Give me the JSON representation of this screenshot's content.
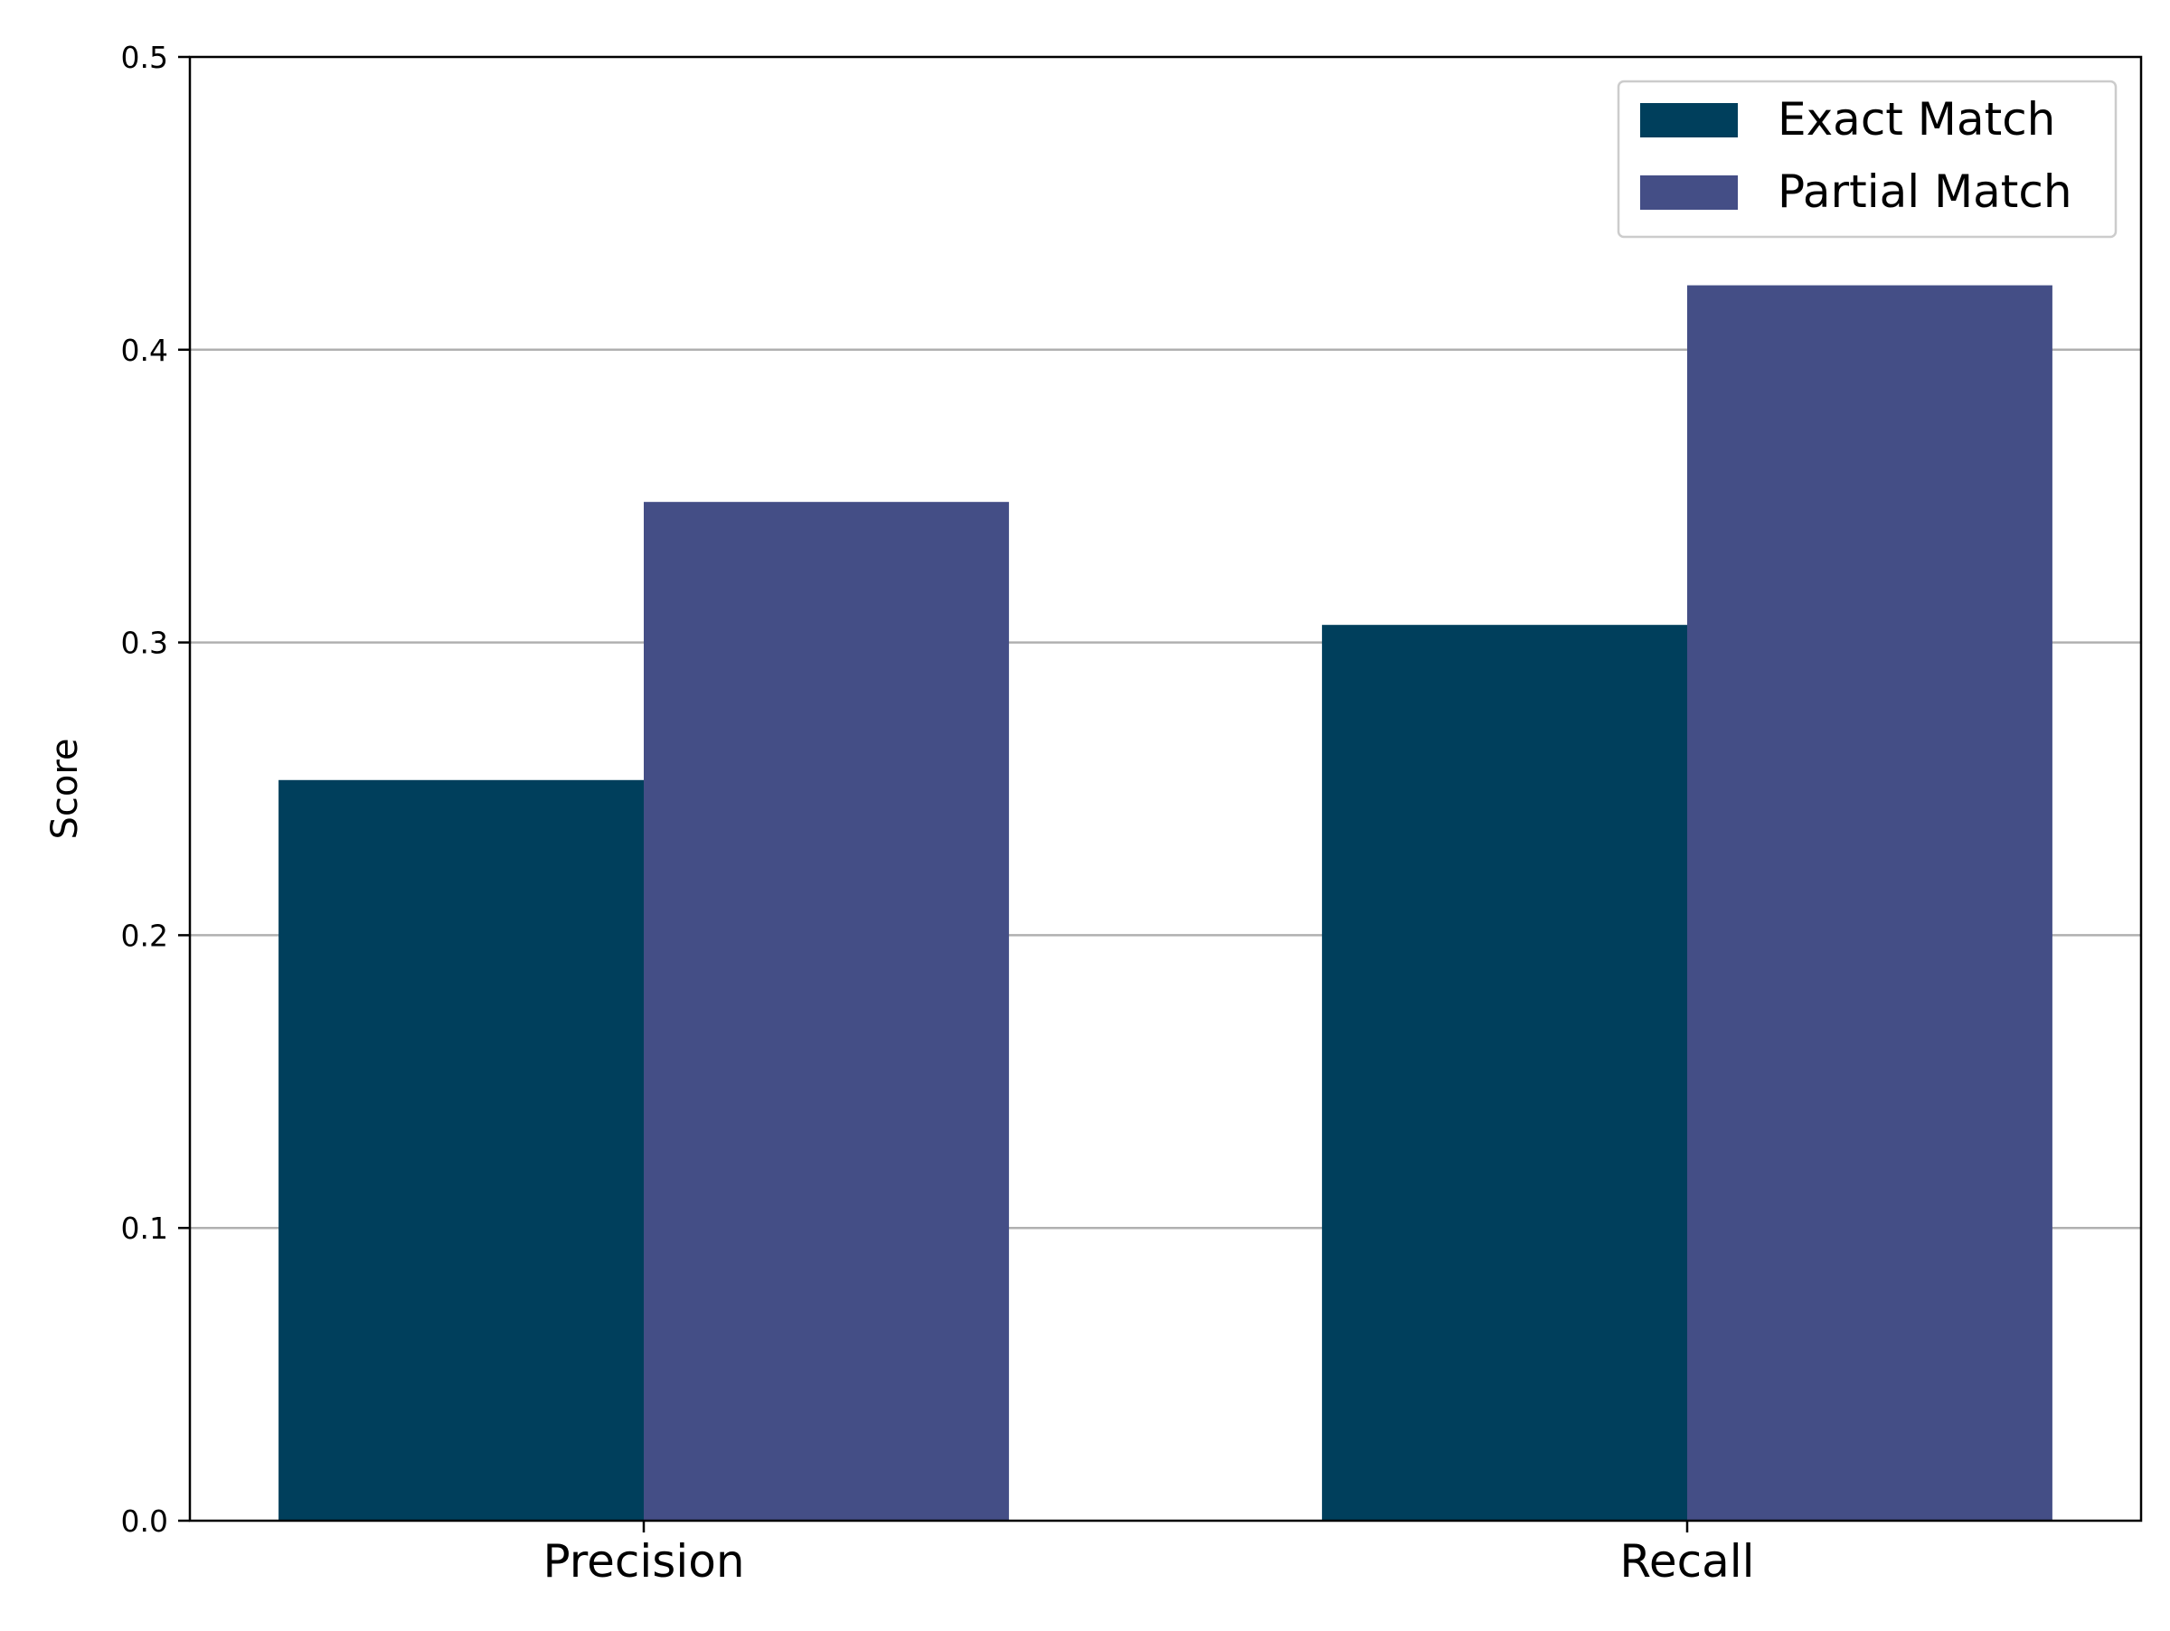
{
  "chart_data": {
    "type": "bar",
    "categories": [
      "Precision",
      "Recall"
    ],
    "series": [
      {
        "name": "Exact Match",
        "values": [
          0.253,
          0.306
        ],
        "color": "#003f5c"
      },
      {
        "name": "Partial Match",
        "values": [
          0.348,
          0.422
        ],
        "color": "#444e86"
      }
    ],
    "ylabel": "Score",
    "xlabel": "",
    "ylim": [
      0,
      0.5
    ],
    "yticks": [
      0.0,
      0.1,
      0.2,
      0.3,
      0.4,
      0.5
    ],
    "ytick_labels": [
      "0.0",
      "0.1",
      "0.2",
      "0.3",
      "0.4",
      "0.5"
    ],
    "grid": "y",
    "legend_position": "top-right"
  }
}
